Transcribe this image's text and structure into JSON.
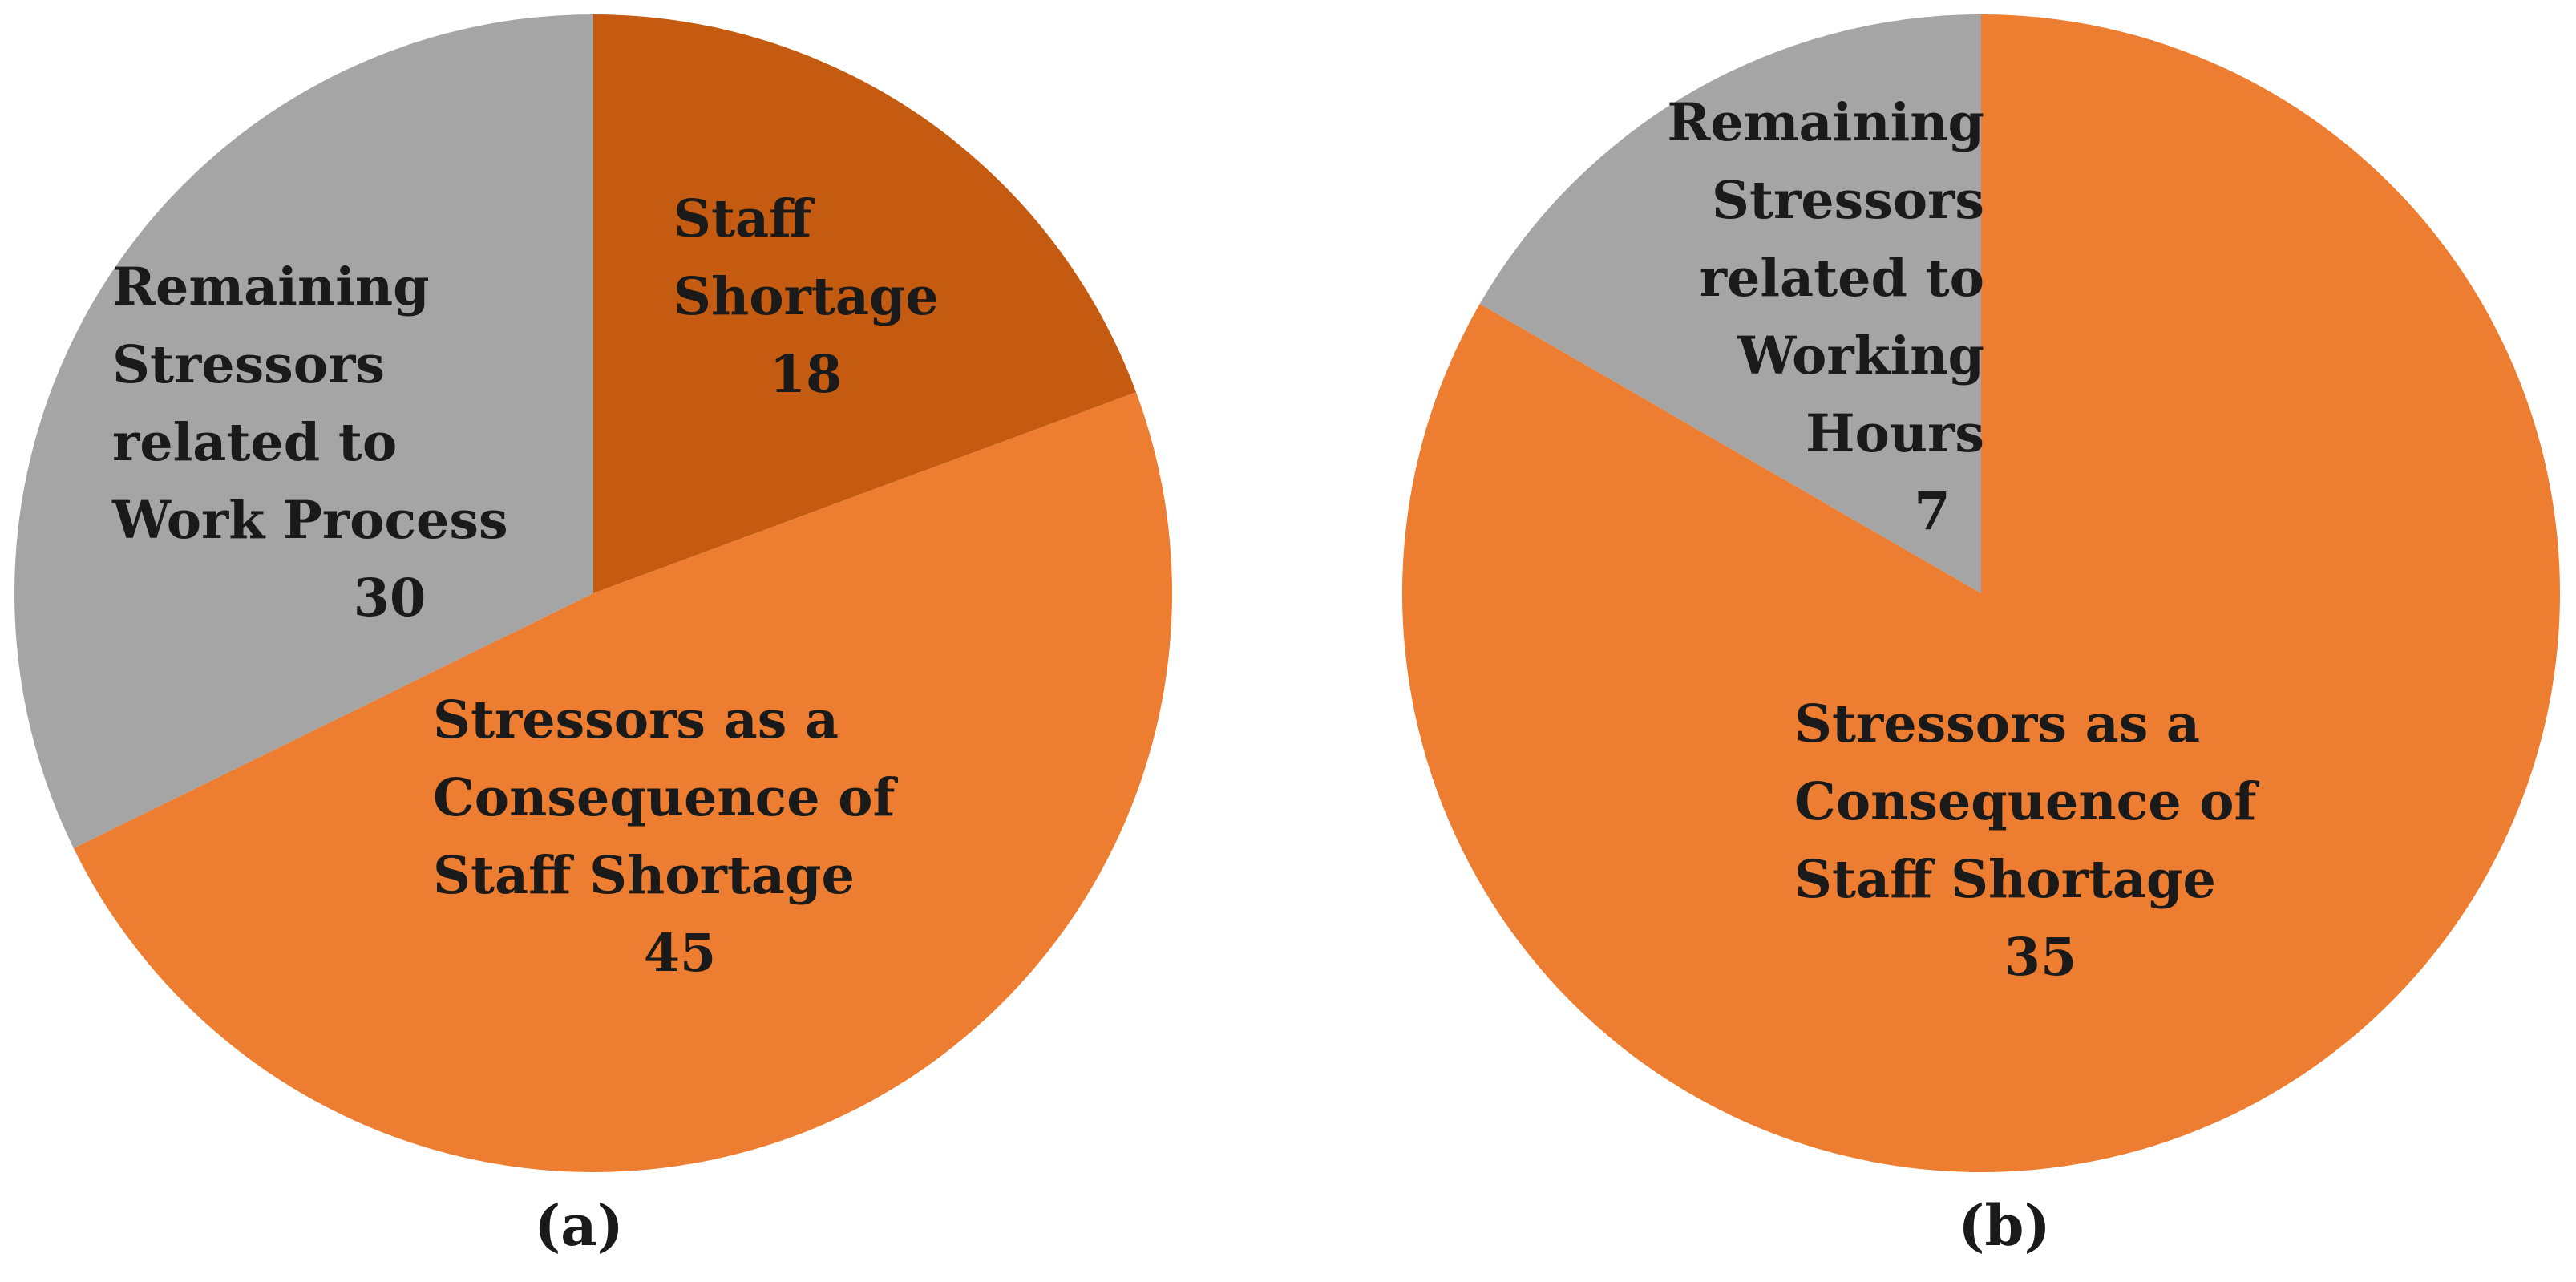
{
  "chart_data": [
    {
      "type": "pie",
      "panel_label": "(a)",
      "start_angle_deg": 0,
      "direction": "clockwise",
      "slices": [
        {
          "lines": [
            "Staff",
            "Shortage"
          ],
          "value": 18,
          "color": "#C55A11"
        },
        {
          "lines": [
            "Stressors as a",
            "Consequence of",
            "Staff Shortage"
          ],
          "value": 45,
          "color": "#ED7D31"
        },
        {
          "lines": [
            "Remaining",
            "Stressors",
            "related to",
            "Work Process"
          ],
          "value": 30,
          "color": "#A5A5A5"
        }
      ]
    },
    {
      "type": "pie",
      "panel_label": "(b)",
      "start_angle_deg": 0,
      "direction": "clockwise",
      "slices": [
        {
          "lines": [
            "Stressors as a",
            "Consequence of",
            "Staff Shortage"
          ],
          "value": 35,
          "color": "#ED7D31"
        },
        {
          "lines": [
            "Remaining",
            "Stressors",
            "related to",
            "Working",
            "Hours"
          ],
          "value": 7,
          "color": "#A5A5A5"
        }
      ]
    }
  ]
}
